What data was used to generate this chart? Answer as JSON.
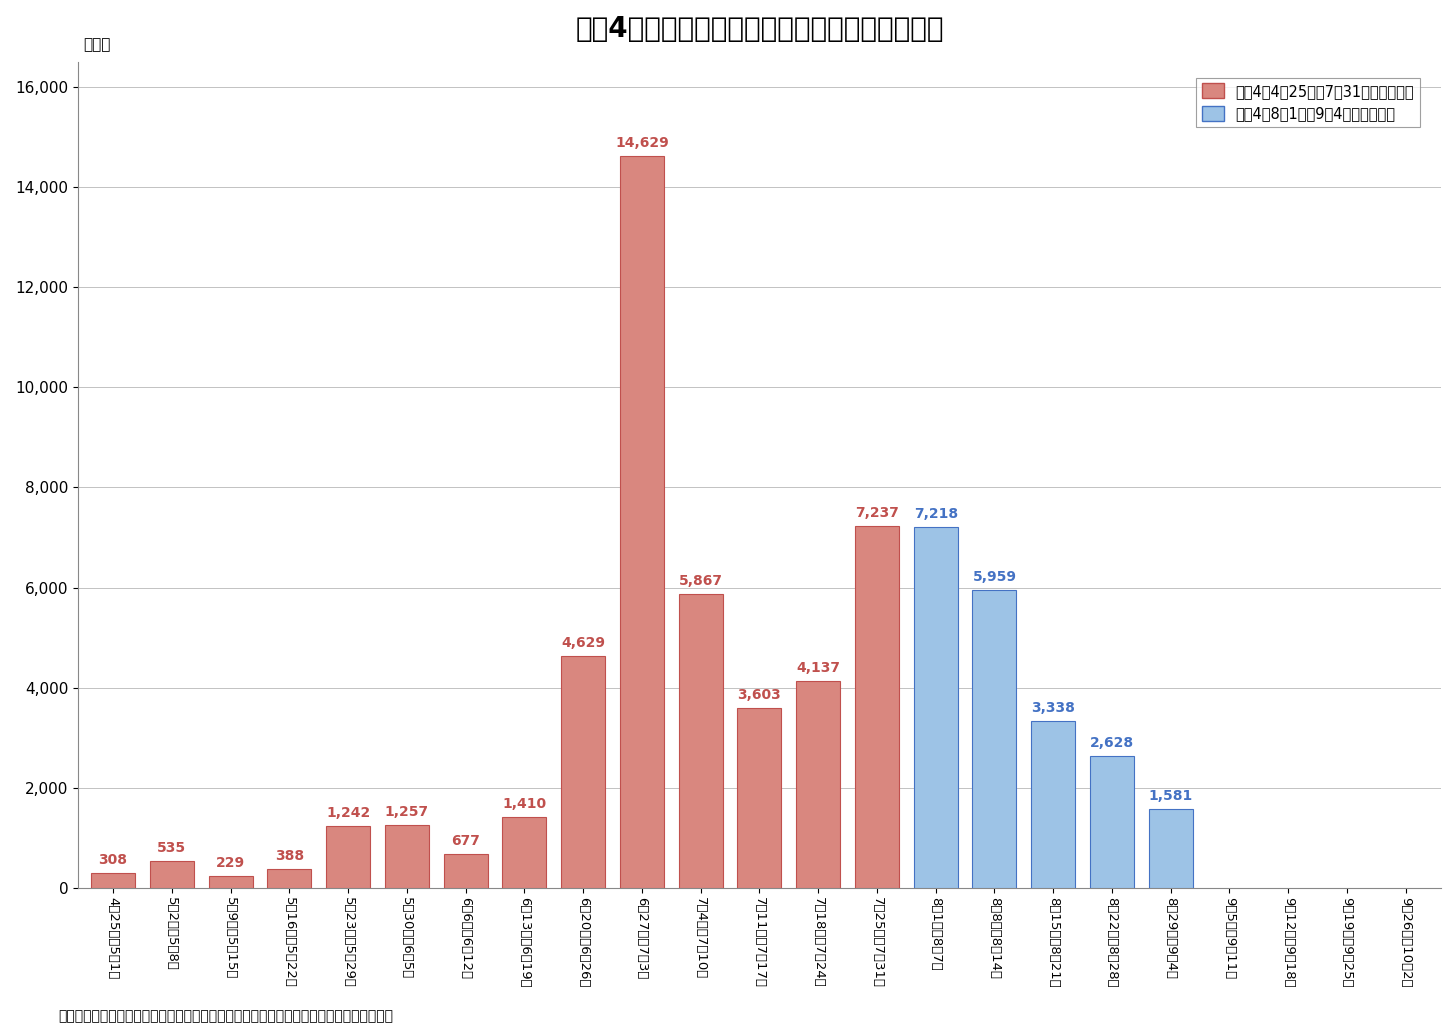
{
  "title": "令和4年熱中症による救急搬送状況（週別推移）",
  "ylabel": "（人）",
  "footnote": "＊速報値（青）の救急搬送人員は、後日修正されることもありますのでご了承ください。",
  "legend1": "令和4年4月25日～7月31日（確定値）",
  "legend2": "令和4年8月1日～9月4日（速報値）",
  "categories": [
    "4月25日～5月1日",
    "5月2日～5月8日",
    "5月9日～5月15日",
    "5月16日～5月22日",
    "5月23日～5月29日",
    "5月30日～6月5日",
    "6月6日～6月12日",
    "6月13日～6月19日",
    "6月20日～6月26日",
    "6月27日～7月3日",
    "7月4日～7月10日",
    "7月11日～7月17日",
    "7月18日～7月24日",
    "7月25日～7月31日",
    "8月1日～8月7日",
    "8月8日～8月14日",
    "8月15日～8月21日",
    "8月22日～8月28日",
    "8月29日～9月4日",
    "9月5日～9月11日",
    "9月12日～9月18日",
    "9月19日～9月25日",
    "9月26日～10月2日"
  ],
  "values": [
    308,
    535,
    229,
    388,
    1242,
    1257,
    677,
    1410,
    4629,
    14629,
    5867,
    3603,
    4137,
    7237,
    7218,
    5959,
    3338,
    2628,
    1581,
    0,
    0,
    0,
    0
  ],
  "series1_indices": [
    0,
    1,
    2,
    3,
    4,
    5,
    6,
    7,
    8,
    9,
    10,
    11,
    12,
    13
  ],
  "series2_indices": [
    14,
    15,
    16,
    17,
    18
  ],
  "series1_fill": "#D9877F",
  "series1_edge": "#C0504D",
  "series2_fill": "#9DC3E6",
  "series2_edge": "#4472C4",
  "label_color1": "#C0504D",
  "label_color2": "#4472C4",
  "ylim": [
    0,
    16500
  ],
  "yticks": [
    0,
    2000,
    4000,
    6000,
    8000,
    10000,
    12000,
    14000,
    16000
  ],
  "bar_width": 0.75
}
